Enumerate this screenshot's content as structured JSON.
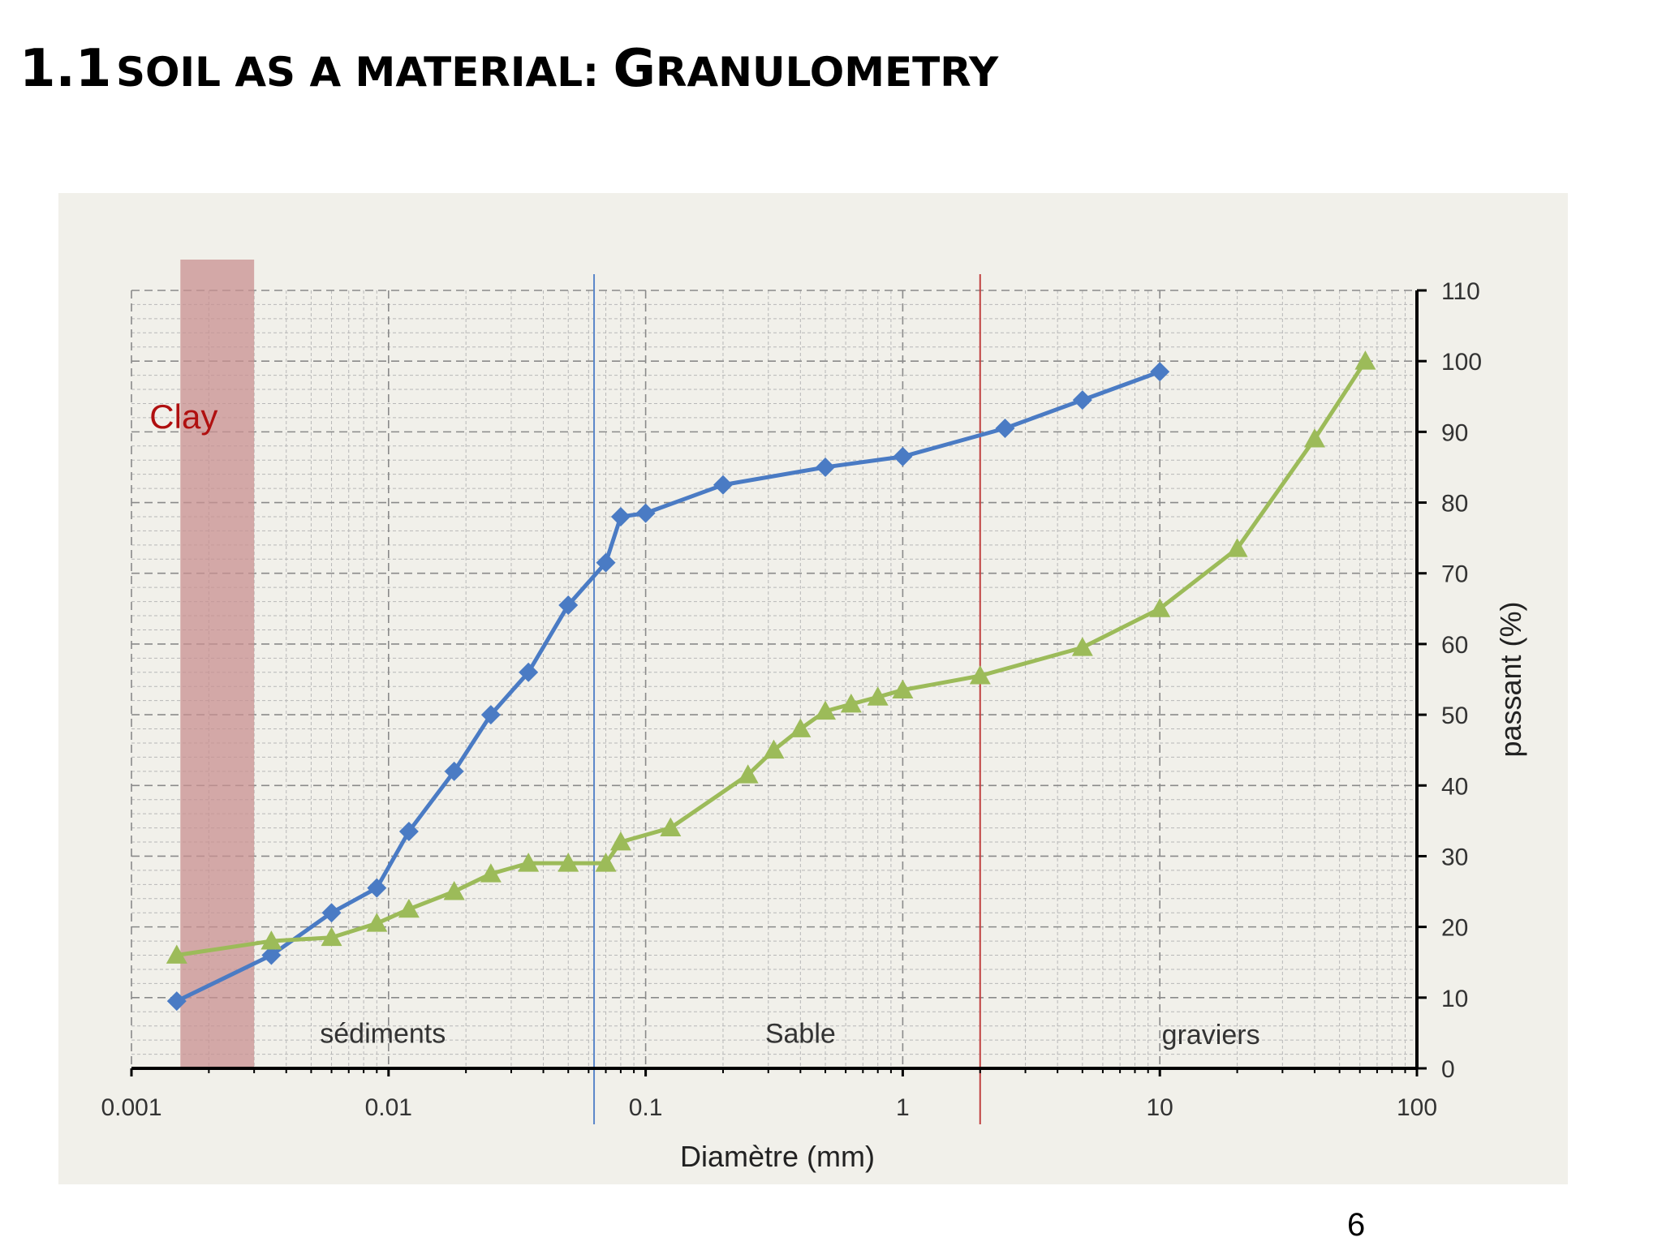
{
  "slide": {
    "title_number": "1.1",
    "title_part1": "SOIL AS A MATERIAL: ",
    "title_cap": "G",
    "title_rest": "RANULOMETRY",
    "page_number": "6"
  },
  "chart_data": {
    "type": "line",
    "x_scale": "log",
    "xlim": [
      0.001,
      100
    ],
    "ylim": [
      0,
      110
    ],
    "xlabel": "Diamètre (mm)",
    "ylabel": "passant (%)",
    "x_ticks": [
      0.001,
      0.01,
      0.1,
      1,
      10,
      100
    ],
    "x_tick_labels": [
      "0.001",
      "0.01",
      "0.1",
      "1",
      "10",
      "100"
    ],
    "y_ticks": [
      0,
      10,
      20,
      30,
      40,
      50,
      60,
      70,
      80,
      90,
      100,
      110
    ],
    "y_tick_labels": [
      "0",
      "10",
      "20",
      "30",
      "40",
      "50",
      "60",
      "70",
      "80",
      "90",
      "100",
      "110"
    ],
    "grid": true,
    "series": [
      {
        "name": "blue",
        "color": "#4a7bc4",
        "marker": "diamond",
        "x": [
          0.0015,
          0.0035,
          0.006,
          0.009,
          0.012,
          0.018,
          0.025,
          0.035,
          0.05,
          0.07,
          0.08,
          0.1,
          0.2,
          0.5,
          1,
          2.5,
          5,
          10
        ],
        "y": [
          9.5,
          16,
          22,
          25.5,
          33.5,
          42,
          50,
          56,
          65.5,
          71.5,
          78,
          78.5,
          82.5,
          85,
          86.5,
          90.5,
          94.5,
          98.5
        ]
      },
      {
        "name": "green",
        "color": "#9cbb59",
        "marker": "triangle",
        "x": [
          0.0015,
          0.0035,
          0.006,
          0.009,
          0.012,
          0.018,
          0.025,
          0.035,
          0.05,
          0.07,
          0.08,
          0.125,
          0.25,
          0.315,
          0.4,
          0.5,
          0.63,
          0.8,
          1,
          2,
          5,
          10,
          20,
          40,
          63
        ],
        "y": [
          16,
          18,
          18.5,
          20.5,
          22.5,
          25,
          27.5,
          29,
          29,
          29,
          32,
          34,
          41.5,
          45,
          48,
          50.5,
          51.5,
          52.5,
          53.5,
          55.5,
          59.5,
          65,
          73.5,
          89,
          100
        ]
      }
    ],
    "vertical_lines": [
      {
        "x": 0.063,
        "color": "#5b87c9"
      },
      {
        "x": 2,
        "color": "#c04040"
      }
    ],
    "bands": [
      {
        "label": "Clay",
        "x_from": 0.00155,
        "x_to": 0.003,
        "color": "#c89090"
      }
    ],
    "zones": [
      {
        "label": "sédiments",
        "x": 0.0095,
        "y": 5
      },
      {
        "label": "Sable",
        "x": 0.4,
        "y": 5
      },
      {
        "label": "graviers",
        "x": 15.8,
        "y": 4.8
      }
    ]
  }
}
